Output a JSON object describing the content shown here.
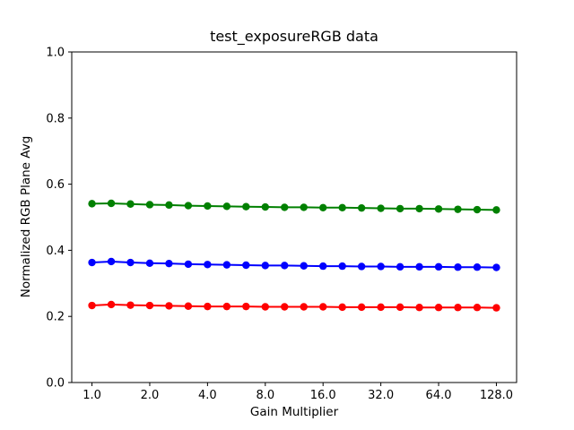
{
  "figure": {
    "background": "#ffffff",
    "frame_color": "#000000"
  },
  "chart_data": {
    "type": "line",
    "title": "test_exposureRGB data",
    "xlabel": "Gain Multiplier",
    "ylabel": "Normalized RGB Plane Avg",
    "xscale": "log2",
    "xlim_log2": [
      -0.35,
      7.35
    ],
    "ylim": [
      0.0,
      1.0
    ],
    "grid": false,
    "legend": "none",
    "x_ticks": [
      1.0,
      2.0,
      4.0,
      8.0,
      16.0,
      32.0,
      64.0,
      128.0
    ],
    "x_tick_labels": [
      "1.0",
      "2.0",
      "4.0",
      "8.0",
      "16.0",
      "32.0",
      "64.0",
      "128.0"
    ],
    "y_ticks": [
      0.0,
      0.2,
      0.4,
      0.6,
      0.8,
      1.0
    ],
    "y_tick_labels": [
      "0.0",
      "0.2",
      "0.4",
      "0.6",
      "0.8",
      "1.0"
    ],
    "x": [
      1.0,
      1.26,
      1.587,
      2.0,
      2.52,
      3.175,
      4.0,
      5.04,
      6.35,
      8.0,
      10.079,
      12.699,
      16.0,
      20.159,
      25.398,
      32.0,
      40.317,
      50.797,
      64.0,
      80.635,
      101.594,
      128.0
    ],
    "series": [
      {
        "name": "green",
        "color": "#008000",
        "marker": "circle",
        "values": [
          0.541,
          0.542,
          0.54,
          0.538,
          0.537,
          0.535,
          0.534,
          0.533,
          0.532,
          0.531,
          0.53,
          0.53,
          0.529,
          0.529,
          0.528,
          0.527,
          0.526,
          0.526,
          0.525,
          0.524,
          0.523,
          0.522
        ]
      },
      {
        "name": "blue",
        "color": "#0000ff",
        "marker": "circle",
        "values": [
          0.363,
          0.366,
          0.363,
          0.361,
          0.36,
          0.358,
          0.357,
          0.356,
          0.355,
          0.354,
          0.354,
          0.353,
          0.352,
          0.352,
          0.351,
          0.351,
          0.35,
          0.35,
          0.35,
          0.349,
          0.349,
          0.348
        ]
      },
      {
        "name": "red",
        "color": "#ff0000",
        "marker": "circle",
        "values": [
          0.233,
          0.236,
          0.234,
          0.233,
          0.232,
          0.231,
          0.23,
          0.23,
          0.23,
          0.229,
          0.229,
          0.229,
          0.229,
          0.228,
          0.228,
          0.228,
          0.228,
          0.227,
          0.227,
          0.227,
          0.227,
          0.226
        ]
      }
    ]
  }
}
